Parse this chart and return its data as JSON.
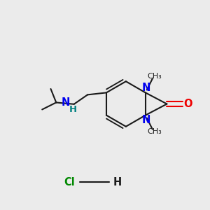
{
  "bg": "#ebebeb",
  "bc": "#1a1a1a",
  "nc": "#0000ee",
  "oc": "#ee0000",
  "nhc": "#008080",
  "clc": "#008800",
  "lw": 1.5,
  "fs": 9.5,
  "xlim": [
    0.0,
    1.0
  ],
  "ylim": [
    0.0,
    1.0
  ]
}
